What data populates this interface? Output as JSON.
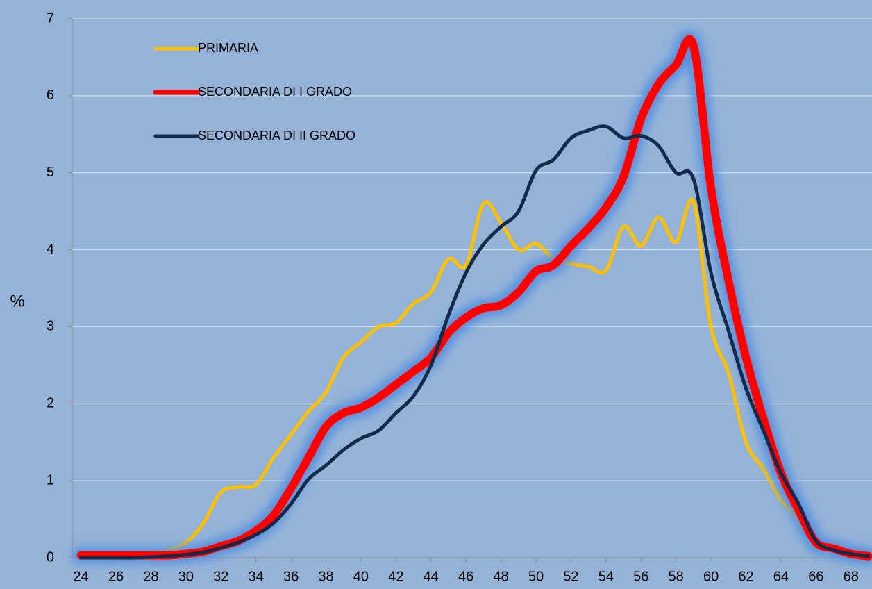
{
  "chart_data": {
    "type": "line",
    "y_label": "%",
    "x": [
      24,
      25,
      26,
      27,
      28,
      29,
      30,
      31,
      32,
      33,
      34,
      35,
      36,
      37,
      38,
      39,
      40,
      41,
      42,
      43,
      44,
      45,
      46,
      47,
      48,
      49,
      50,
      51,
      52,
      53,
      54,
      55,
      56,
      57,
      58,
      59,
      60,
      61,
      62,
      63,
      64,
      65,
      66,
      67,
      68,
      69
    ],
    "series": [
      {
        "name": "PRIMARIA",
        "color": "#ffc000",
        "width": 5,
        "values": [
          0,
          0,
          0,
          0,
          0.05,
          0.1,
          0.2,
          0.45,
          0.85,
          0.92,
          0.95,
          1.3,
          1.6,
          1.9,
          2.15,
          2.6,
          2.8,
          3.0,
          3.05,
          3.3,
          3.45,
          3.88,
          3.8,
          4.6,
          4.35,
          4.0,
          4.08,
          3.88,
          3.82,
          3.78,
          3.73,
          4.3,
          4.05,
          4.42,
          4.1,
          4.62,
          3.0,
          2.4,
          1.5,
          1.15,
          0.75,
          0.5,
          0.15,
          0.1,
          0.05,
          0.02
        ]
      },
      {
        "name": "SECONDARIA DI I GRADO",
        "color": "#ff0000",
        "width": 12,
        "glow": "#4f8fe0",
        "values": [
          0.03,
          0.03,
          0.03,
          0.03,
          0.03,
          0.03,
          0.05,
          0.08,
          0.15,
          0.22,
          0.35,
          0.55,
          0.9,
          1.3,
          1.7,
          1.88,
          1.95,
          2.08,
          2.25,
          2.42,
          2.6,
          2.92,
          3.12,
          3.24,
          3.28,
          3.45,
          3.72,
          3.8,
          4.05,
          4.28,
          4.55,
          4.95,
          5.7,
          6.15,
          6.4,
          6.65,
          4.8,
          3.6,
          2.6,
          1.8,
          1.1,
          0.62,
          0.2,
          0.12,
          0.05,
          0.02
        ]
      },
      {
        "name": "SECONDARIA DI II GRADO",
        "color": "#132a4a",
        "width": 5,
        "values": [
          0,
          0,
          0,
          0,
          0.01,
          0.02,
          0.04,
          0.07,
          0.13,
          0.2,
          0.3,
          0.45,
          0.7,
          1.02,
          1.2,
          1.4,
          1.55,
          1.65,
          1.88,
          2.1,
          2.5,
          3.15,
          3.7,
          4.07,
          4.3,
          4.5,
          5.03,
          5.17,
          5.45,
          5.55,
          5.6,
          5.45,
          5.48,
          5.35,
          5.0,
          4.92,
          3.7,
          2.95,
          2.2,
          1.65,
          1.1,
          0.7,
          0.22,
          0.1,
          0.05,
          0.02
        ]
      }
    ],
    "xlim": [
      23.5,
      69.2
    ],
    "xticks": [
      24,
      26,
      28,
      30,
      32,
      34,
      36,
      38,
      40,
      42,
      44,
      46,
      48,
      50,
      52,
      54,
      56,
      58,
      60,
      62,
      64,
      66,
      68
    ],
    "ylim": [
      0,
      7
    ],
    "yticks": [
      0,
      1,
      2,
      3,
      4,
      5,
      6,
      7
    ],
    "grid": true,
    "legend": "top-left"
  }
}
